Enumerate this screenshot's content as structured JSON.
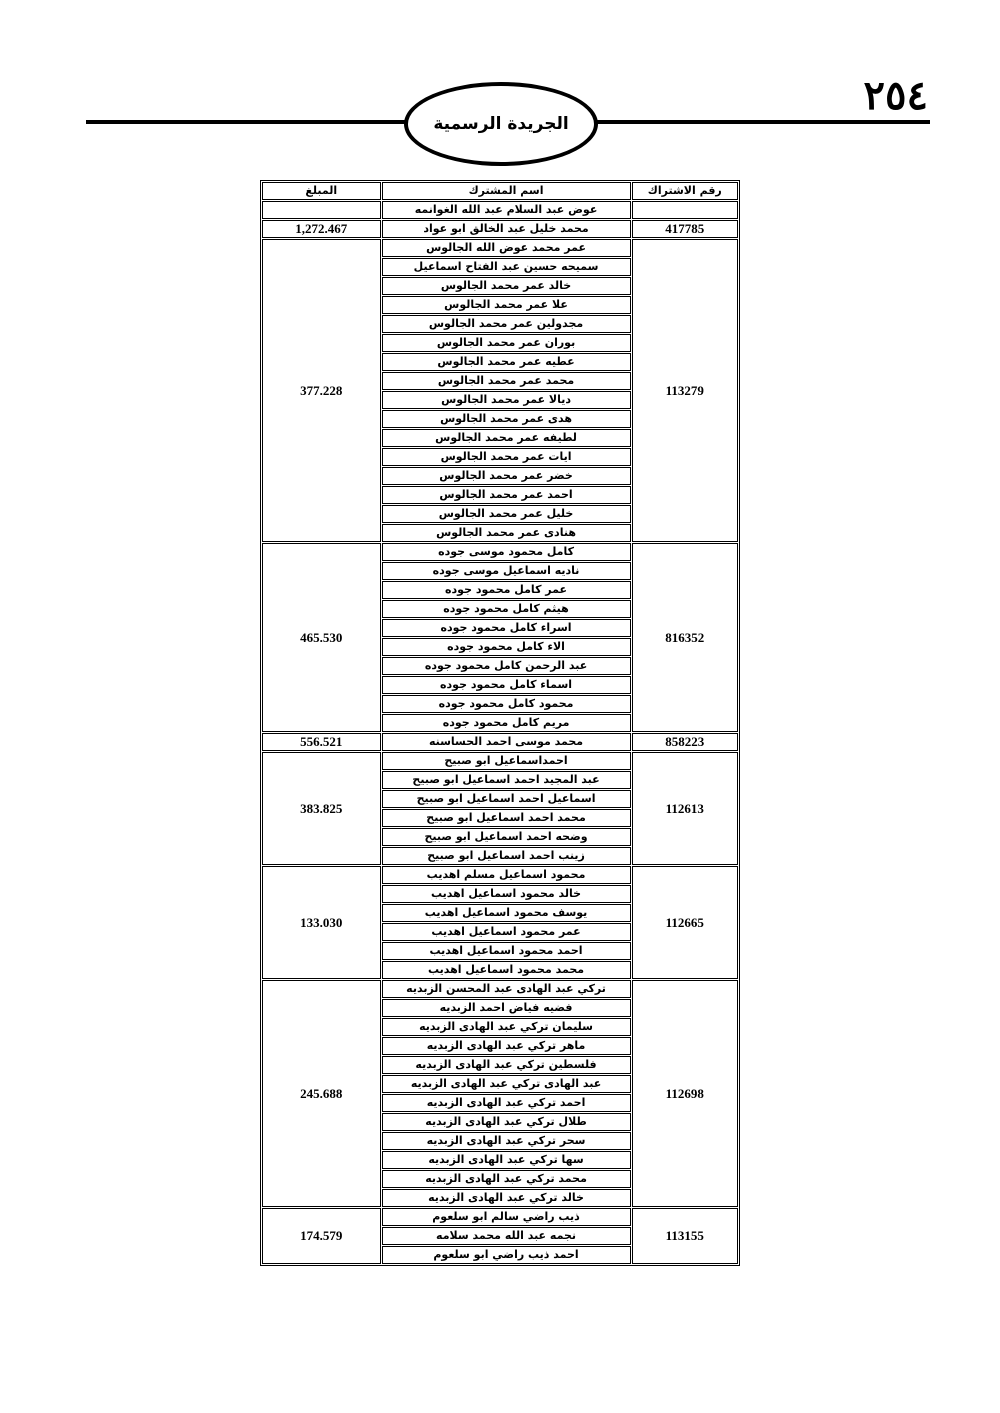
{
  "header": {
    "page_number": "٢٥٤",
    "title": "الجريدة الرسمية"
  },
  "table": {
    "columns": [
      "رقم الاشتراك",
      "اسم المشترك",
      "المبلغ"
    ],
    "groups": [
      {
        "names": [
          "عوض عبد السلام عبد الله الغوانمه"
        ]
      },
      {
        "number": "417785",
        "names": [
          "محمد خليل عبد الخالق ابو عواد"
        ],
        "amount": "1,272.467"
      },
      {
        "number": "113279",
        "names": [
          "عمر محمد عوض الله الجالوس",
          "سميحه حسين عبد الفتاح اسماعيل",
          "خالد عمر محمد الجالوس",
          "علا عمر محمد الجالوس",
          "مجدولين عمر محمد الجالوس",
          "بوران عمر محمد الجالوس",
          "عطيه عمر محمد الجالوس",
          "محمد عمر محمد الجالوس",
          "ديالا عمر محمد الجالوس",
          "هدى عمر محمد الجالوس",
          "لطيفه عمر محمد الجالوس",
          "ايات عمر محمد الجالوس",
          "خضر عمر محمد الجالوس",
          "احمد عمر محمد الجالوس",
          "خليل عمر محمد الجالوس",
          "هنادى عمر محمد الجالوس"
        ],
        "amount": "377.228"
      },
      {
        "number": "816352",
        "names": [
          "كامل محمود موسى جوده",
          "ناديه اسماعيل موسى جوده",
          "عمر كامل محمود جوده",
          "هيثم كامل محمود جوده",
          "اسراء كامل محمود جوده",
          "الاء كامل محمود جوده",
          "عبد الرحمن كامل محمود جوده",
          "اسماء كامل محمود جوده",
          "محمود كامل محمود جوده",
          "مريم كامل محمود جوده"
        ],
        "amount": "465.530"
      },
      {
        "number": "858223",
        "names": [
          "محمد موسى احمد الحساسنه"
        ],
        "amount": "556.521"
      },
      {
        "number": "112613",
        "names": [
          "احمداسماعيل ابو صبيح",
          "عبد المجيد احمد اسماعيل ابو صبيح",
          "اسماعيل احمد اسماعيل ابو صبيح",
          "محمد احمد اسماعيل ابو صبيح",
          "وضحه احمد اسماعيل ابو صبيح",
          "زينب احمد اسماعيل ابو صبيح"
        ],
        "amount": "383.825"
      },
      {
        "number": "112665",
        "names": [
          "محمود اسماعيل مسلم اهديب",
          "خالد محمود اسماعيل اهديب",
          "يوسف محمود اسماعيل اهديب",
          "عمر محمود اسماعيل اهديب",
          "احمد محمود اسماعيل اهديب",
          "محمد محمود اسماعيل اهديب"
        ],
        "amount": "133.030"
      },
      {
        "number": "112698",
        "names": [
          "تركي عبد الهادى عبد المحسن الزبديه",
          "فضيه فياض احمد الزبديه",
          "سليمان تركي عبد الهادى الزبديه",
          "ماهر تركي عبد الهادى الزبديه",
          "فلسطين تركي عبد الهادى الزبديه",
          "عبد الهادى تركي عبد الهادى الزبديه",
          "احمد تركي عبد الهادى الزبديه",
          "طلال تركي عبد الهادى الزبديه",
          "سحر تركي عبد الهادى الزبديه",
          "سها تركي عبد الهادى الزبديه",
          "محمد تركي عبد الهادى الزبديه",
          "خالد تركي عبد الهادى الزبديه"
        ],
        "amount": "245.688"
      },
      {
        "number": "113155",
        "names": [
          "ذيب راضي سالم ابو سلعوم",
          "نجمه عبد الله محمد سلامه",
          "احمد ذيب راضي ابو سلعوم"
        ],
        "amount": "174.579"
      }
    ]
  }
}
